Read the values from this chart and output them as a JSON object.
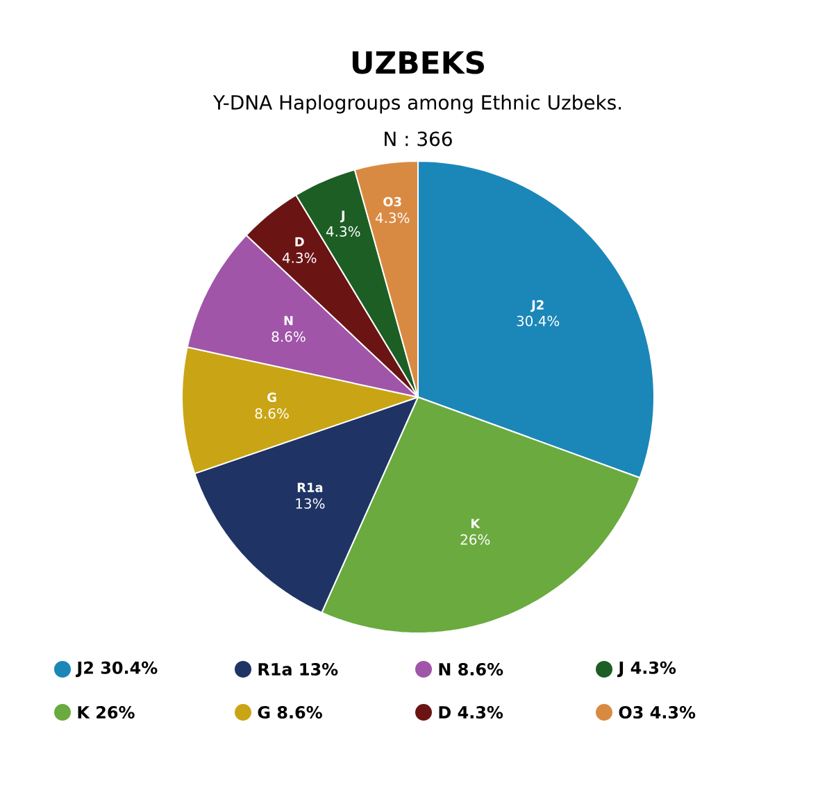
{
  "chart_data": {
    "type": "pie",
    "title": "UZBEKS",
    "subtitle": "Y-DNA Haplogroups among Ethnic Uzbeks.",
    "annotations": [
      "N : 366"
    ],
    "legend": "bottom",
    "categories": [
      "J2",
      "K",
      "R1a",
      "G",
      "N",
      "D",
      "J",
      "O3"
    ],
    "values": [
      30.4,
      26,
      13,
      8.6,
      8.6,
      4.3,
      4.3,
      4.3
    ],
    "value_labels": [
      "30.4%",
      "26%",
      "13%",
      "8.6%",
      "8.6%",
      "4.3%",
      "4.3%",
      "4.3%"
    ],
    "colors": [
      "#1b87b8",
      "#6aaa3f",
      "#1f3464",
      "#c9a516",
      "#a055a8",
      "#6b1414",
      "#1d5e24",
      "#d98a42"
    ]
  }
}
